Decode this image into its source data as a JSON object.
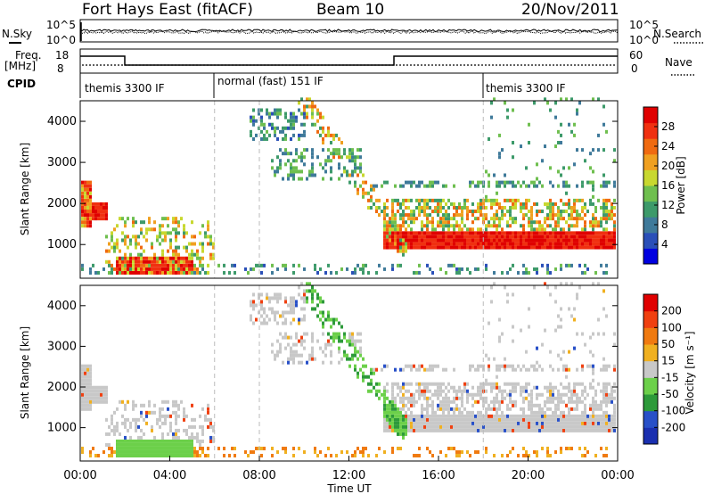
{
  "header": {
    "station": "Fort Hays East (fitACF)",
    "beam": "Beam 10",
    "date": "20/Nov/2011"
  },
  "noise_panel": {
    "left_label": "N.Sky",
    "right_label": "N.Search",
    "left_ticks": [
      "10^5",
      "10^0"
    ],
    "right_ticks": [
      "10^5",
      "10^0"
    ]
  },
  "freq_panel": {
    "left_label_1": "Freq.",
    "left_label_2": "[MHz]",
    "left_ticks": [
      "18",
      "8"
    ],
    "right_label": "Nave",
    "right_ticks": [
      "60",
      "0"
    ]
  },
  "cpid_panel": {
    "label": "CPID",
    "modes": [
      {
        "name": "themis 3300 IF",
        "start": 0
      },
      {
        "name": "normal (fast) 151 IF",
        "start": 6
      },
      {
        "name": "themis 3300 IF",
        "start": 18
      }
    ]
  },
  "colors": {
    "freq_line": "#000000",
    "grid_dash": "#bbbbbb",
    "ground_scatter": "#c8c8c8"
  },
  "chart_data": [
    {
      "type": "heatmap",
      "name": "power",
      "xlabel": "",
      "ylabel": "Slant Range [km]",
      "xlim": [
        0,
        24
      ],
      "ylim": [
        180,
        4500
      ],
      "yticks": [
        1000,
        2000,
        3000,
        4000
      ],
      "ytick_labels": [
        "1000",
        "2000",
        "3000",
        "4000"
      ],
      "colorbar": {
        "label": "Power [dB]",
        "range": [
          0,
          32
        ],
        "ticks": [
          "28",
          "24",
          "20",
          "16",
          "12",
          "8",
          "4"
        ],
        "tick_values": [
          28,
          24,
          20,
          16,
          12,
          8,
          4
        ],
        "colors": [
          "#0000e0",
          "#2a4fb8",
          "#3f7a9a",
          "#3d9a6a",
          "#6fbf4f",
          "#c8d830",
          "#f0a020",
          "#f06a10",
          "#f03010",
          "#e00000"
        ]
      }
    },
    {
      "type": "heatmap",
      "name": "velocity",
      "xlabel": "Time UT",
      "ylabel": "Slant Range [km]",
      "xlim": [
        0,
        24
      ],
      "ylim": [
        180,
        4500
      ],
      "xticks": [
        0,
        4,
        8,
        12,
        16,
        20,
        24
      ],
      "xtick_labels": [
        "00:00",
        "04:00",
        "08:00",
        "12:00",
        "16:00",
        "20:00",
        "00:00"
      ],
      "yticks": [
        1000,
        2000,
        3000,
        4000
      ],
      "ytick_labels": [
        "1000",
        "2000",
        "3000",
        "4000"
      ],
      "colorbar": {
        "label": "Velocity [m s⁻¹]",
        "ticks": [
          "200",
          "100",
          "50",
          "15",
          "-15",
          "-50",
          "-100",
          "-200"
        ],
        "colors": [
          "#1a2fb0",
          "#2850c8",
          "#2d9a3a",
          "#6cd04a",
          "#c8c8c8",
          "#f0b020",
          "#f07a10",
          "#f04010",
          "#e00000"
        ]
      }
    }
  ]
}
